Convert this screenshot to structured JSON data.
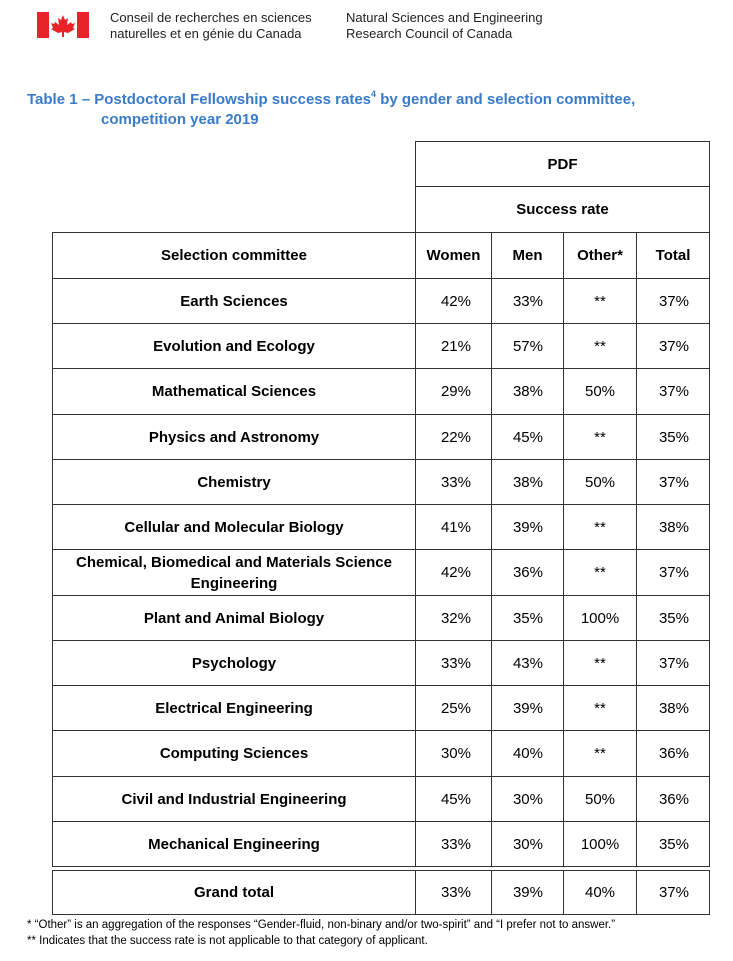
{
  "header": {
    "org_fr": [
      "Conseil de recherches en sciences",
      "naturelles et en génie du Canada"
    ],
    "org_en": [
      "Natural Sciences and Engineering",
      "Research Council of Canada"
    ]
  },
  "title": {
    "before": "Table 1 – Postdoctoral Fellowship success rates",
    "sup": "4",
    "after": " by gender and selection committee,",
    "line2": "competition year 2019"
  },
  "table": {
    "group_header": "PDF",
    "subheader": "Success rate",
    "columns": [
      "Selection committee",
      "Women",
      "Men",
      "Other*",
      "Total"
    ],
    "rows": [
      [
        "Earth Sciences",
        "42%",
        "33%",
        "**",
        "37%"
      ],
      [
        "Evolution and Ecology",
        "21%",
        "57%",
        "**",
        "37%"
      ],
      [
        "Mathematical Sciences",
        "29%",
        "38%",
        "50%",
        "37%"
      ],
      [
        "Physics and Astronomy",
        "22%",
        "45%",
        "**",
        "35%"
      ],
      [
        "Chemistry",
        "33%",
        "38%",
        "50%",
        "37%"
      ],
      [
        "Cellular and Molecular Biology",
        "41%",
        "39%",
        "**",
        "38%"
      ],
      [
        "Chemical, Biomedical and Materials Science Engineering",
        "42%",
        "36%",
        "**",
        "37%"
      ],
      [
        "Plant and Animal Biology",
        "32%",
        "35%",
        "100%",
        "35%"
      ],
      [
        "Psychology",
        "33%",
        "43%",
        "**",
        "37%"
      ],
      [
        "Electrical Engineering",
        "25%",
        "39%",
        "**",
        "38%"
      ],
      [
        "Computing Sciences",
        "30%",
        "40%",
        "**",
        "36%"
      ],
      [
        "Civil and Industrial Engineering",
        "45%",
        "30%",
        "50%",
        "36%"
      ],
      [
        "Mechanical Engineering",
        "33%",
        "30%",
        "100%",
        "35%"
      ]
    ],
    "total": [
      "Grand total",
      "33%",
      "39%",
      "40%",
      "37%"
    ]
  },
  "footnotes": [
    "* “Other” is an aggregation of the responses “Gender-fluid, non-binary and/or two-spirit” and “I prefer not to answer.”",
    "** Indicates that the success rate is not applicable to that category of applicant."
  ]
}
